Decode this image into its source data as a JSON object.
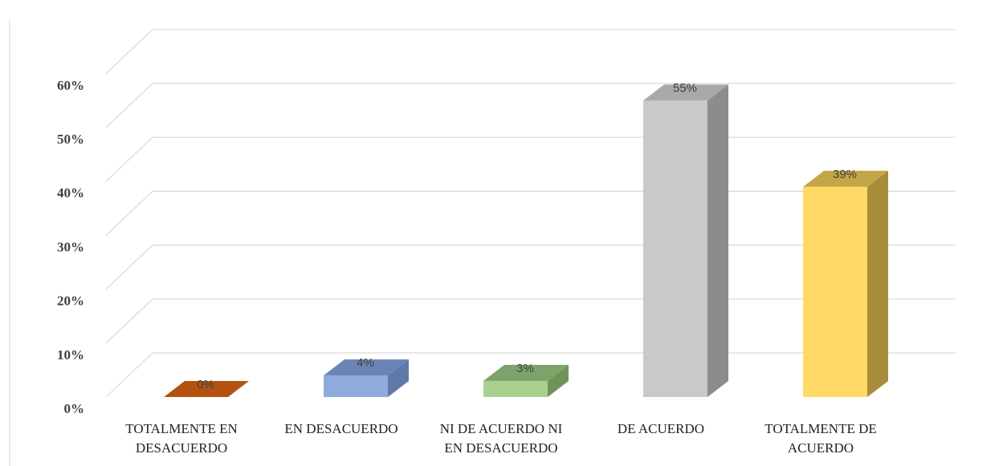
{
  "chart_data": {
    "type": "bar",
    "categories": [
      [
        "TOTALMENTE EN",
        "DESACUERDO"
      ],
      [
        "EN DESACUERDO"
      ],
      [
        "NI DE ACUERDO NI",
        "EN DESACUERDO"
      ],
      [
        "DE ACUERDO"
      ],
      [
        "TOTALMENTE DE",
        "ACUERDO"
      ]
    ],
    "values": [
      0,
      4,
      3,
      55,
      39
    ],
    "data_labels": [
      "0%",
      "4%",
      "3%",
      "55%",
      "39%"
    ],
    "colors": [
      "#c55a11",
      "#8faadc",
      "#a9d18e",
      "#c9c9c9",
      "#ffd966"
    ],
    "side_colors": [
      "#8b3f0c",
      "#5f7aa9",
      "#6f9458",
      "#8c8c8c",
      "#a88c3a"
    ],
    "top_colors": [
      "#b35210",
      "#6b84b5",
      "#7da36a",
      "#a9a9a9",
      "#c4a646"
    ],
    "yticks": [
      "0%",
      "10%",
      "20%",
      "30%",
      "40%",
      "50%",
      "60%"
    ],
    "ylim": [
      0,
      60
    ],
    "grid": true,
    "style": "3d-column"
  }
}
